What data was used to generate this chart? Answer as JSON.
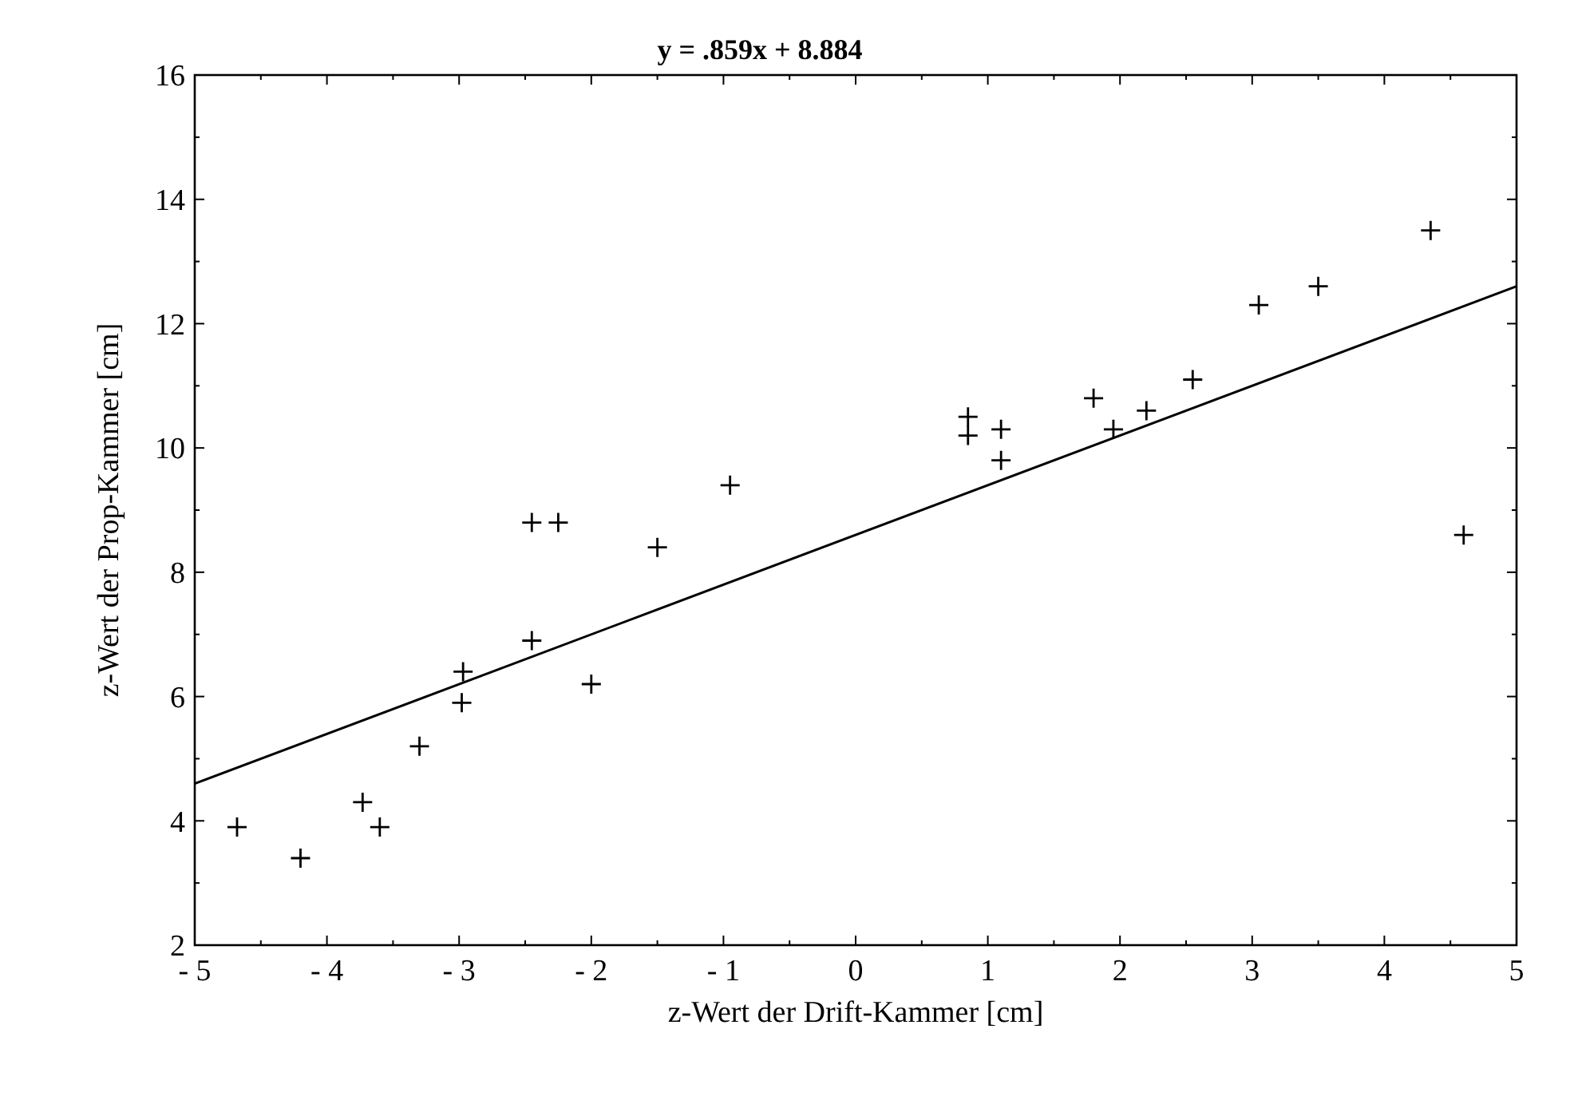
{
  "chart_data": {
    "type": "scatter",
    "title": "y = .859x + 8.884",
    "xlabel": "z-Wert der Drift-Kammer [cm]",
    "ylabel": "z-Wert der Prop-Kammer [cm]",
    "x": [
      -4.68,
      -4.2,
      -3.73,
      -3.6,
      -3.3,
      -2.98,
      -2.97,
      -2.45,
      -2.0,
      -2.45,
      -2.25,
      -1.5,
      -0.95,
      0.85,
      0.85,
      1.1,
      1.1,
      1.8,
      1.95,
      2.2,
      2.55,
      3.05,
      3.5,
      4.35,
      4.6
    ],
    "series": [
      {
        "color": "#000000",
        "marker": "cross",
        "values": [
          3.9,
          3.4,
          4.3,
          3.9,
          5.2,
          5.9,
          6.4,
          6.9,
          6.2,
          8.8,
          8.8,
          8.4,
          9.4,
          10.5,
          10.2,
          10.3,
          9.8,
          10.8,
          10.3,
          10.6,
          11.1,
          12.3,
          12.6,
          13.5,
          8.6
        ]
      },
      {
        "type": "line",
        "color": "#000000",
        "x": [
          -5,
          5
        ],
        "values": [
          4.6,
          12.6
        ]
      }
    ],
    "xlim": [
      -5,
      5
    ],
    "ylim": [
      2,
      16
    ],
    "xticks": [
      {
        "value": -5,
        "label": "- 5"
      },
      {
        "value": -4,
        "label": "- 4"
      },
      {
        "value": -3,
        "label": "- 3"
      },
      {
        "value": -2,
        "label": "- 2"
      },
      {
        "value": -1,
        "label": "- 1"
      },
      0,
      1,
      2,
      3,
      4,
      5
    ],
    "yticks": [
      2,
      4,
      6,
      8,
      10,
      12,
      14,
      16
    ],
    "grid": false
  }
}
